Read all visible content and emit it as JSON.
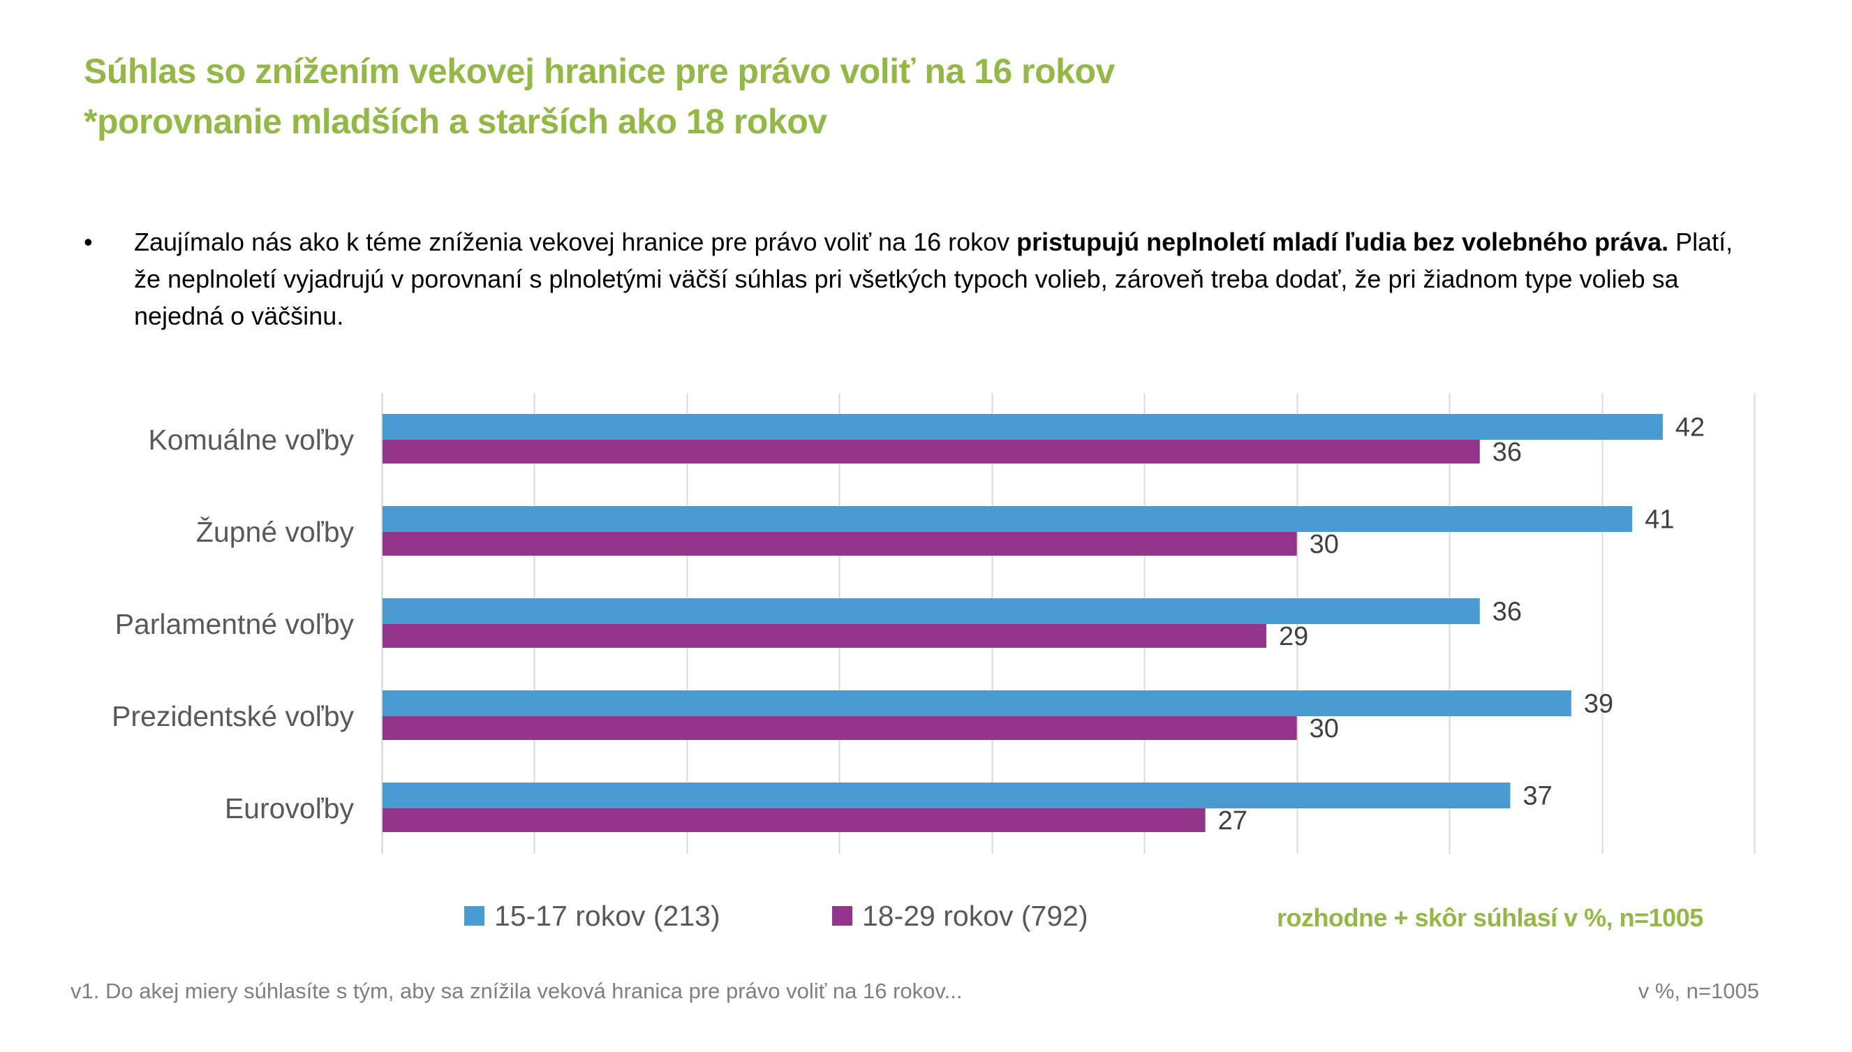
{
  "title": {
    "line1": "Súhlas so znížením vekovej hranice pre právo voliť na 16 rokov",
    "line2": "*porovnanie mladších a starších ako 18 rokov"
  },
  "bullet": {
    "symbol": "•",
    "text_start": "Zaujímalo nás ako k téme zníženia vekovej hranice pre právo voliť na 16 rokov ",
    "text_bold": "pristupujú neplnoletí mladí ľudia bez volebného práva.",
    "text_end": " Platí, že neplnoletí vyjadrujú v porovnaní s plnoletými väčší súhlas pri všetkých typoch volieb, zároveň treba dodať, že  pri žiadnom type volieb sa nejedná o väčšinu."
  },
  "chart_data": {
    "type": "bar",
    "orientation": "horizontal",
    "title": "",
    "xlabel": "",
    "ylabel": "",
    "xlim": [
      0,
      45
    ],
    "grid_step": 5,
    "grid": true,
    "categories": [
      "Komuálne voľby",
      "Župné voľby",
      "Parlamentné voľby",
      "Prezidentské voľby",
      "Eurovoľby"
    ],
    "series": [
      {
        "name": "15-17 rokov (213)",
        "color": "#4A9BD1",
        "values": [
          42,
          41,
          36,
          39,
          37
        ]
      },
      {
        "name": "18-29 rokov (792)",
        "color": "#93358B",
        "values": [
          36,
          30,
          29,
          30,
          27
        ]
      }
    ],
    "legend_position": "bottom",
    "note": "rozhodne + skôr súhlasí v %, n=1005"
  },
  "footer": {
    "question": "v1. Do akej miery súhlasíte s tým, aby sa znížila veková hranica pre právo voliť na 16 rokov...",
    "sample": "v %, n=1005"
  }
}
